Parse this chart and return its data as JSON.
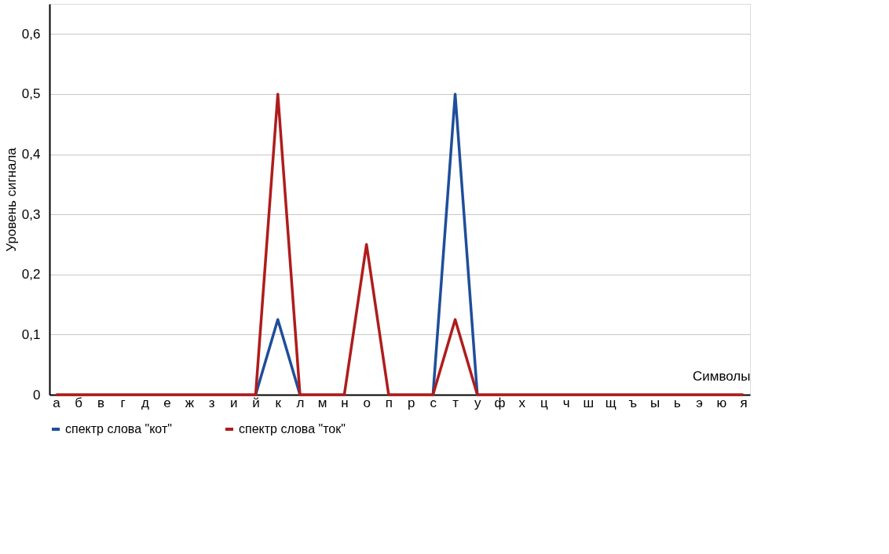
{
  "chart_data": {
    "type": "line",
    "xlabel": "Символы",
    "ylabel": "Уровень сигнала",
    "categories": [
      "а",
      "б",
      "в",
      "г",
      "д",
      "е",
      "ж",
      "з",
      "и",
      "й",
      "к",
      "л",
      "м",
      "н",
      "о",
      "п",
      "р",
      "с",
      "т",
      "у",
      "ф",
      "х",
      "ц",
      "ч",
      "ш",
      "щ",
      "ъ",
      "ы",
      "ь",
      "э",
      "ю",
      "я"
    ],
    "series": [
      {
        "name": "спектр слова \"кот\"",
        "color": "#1f4e9a",
        "values": [
          null,
          null,
          null,
          null,
          null,
          null,
          null,
          null,
          null,
          0,
          0.125,
          0,
          null,
          null,
          null,
          null,
          null,
          0,
          0.5,
          0,
          null,
          null,
          null,
          null,
          null,
          null,
          null,
          null,
          null,
          null,
          null,
          null
        ]
      },
      {
        "name": "спектр слова \"ток\"",
        "color": "#b01c1c",
        "values": [
          0,
          0,
          0,
          0,
          0,
          0,
          0,
          0,
          0,
          0,
          0.5,
          0,
          0,
          0,
          0.25,
          0,
          0,
          0,
          0.125,
          0,
          0,
          0,
          0,
          0,
          0,
          0,
          0,
          0,
          0,
          0,
          0,
          0
        ]
      }
    ],
    "ylim": [
      0,
      0.65
    ],
    "yticks": [
      0,
      {
        "value": 0.1,
        "label": "0,1"
      },
      {
        "value": 0.2,
        "label": "0,2"
      },
      {
        "value": 0.3,
        "label": "0,3"
      },
      {
        "value": 0.4,
        "label": "0,4"
      },
      {
        "value": 0.5,
        "label": "0,5"
      },
      {
        "value": 0.6,
        "label": "0,6"
      }
    ],
    "grid": "y",
    "legend": "bottom",
    "marker": "none",
    "line_style": "solid"
  }
}
